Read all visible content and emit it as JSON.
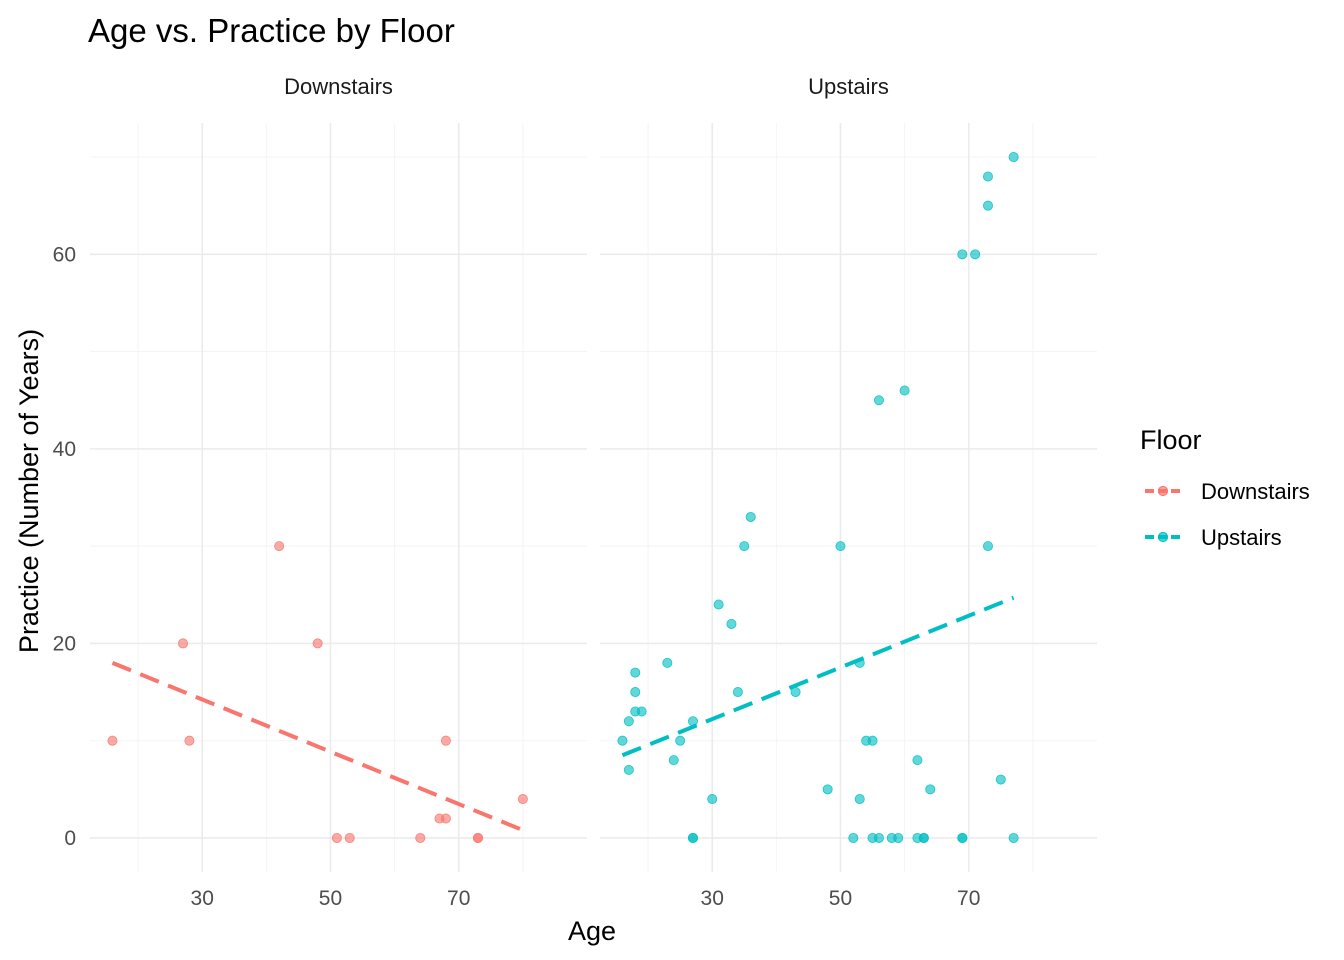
{
  "chart_data": {
    "type": "scatter",
    "title": "Age vs. Practice by Floor",
    "xlabel": "Age",
    "ylabel": "Practice (Number of Years)",
    "x_ticks": [
      30,
      50,
      70
    ],
    "y_ticks": [
      0,
      20,
      40,
      60
    ],
    "xlim": [
      12.5,
      90
    ],
    "ylim": [
      -3.5,
      73.5
    ],
    "facets": [
      "Downstairs",
      "Upstairs"
    ],
    "legend": {
      "title": "Floor",
      "position": "right",
      "entries": [
        "Downstairs",
        "Upstairs"
      ]
    },
    "grid": true,
    "series": [
      {
        "name": "Downstairs",
        "color": "#F8766D",
        "points": [
          [
            16,
            10
          ],
          [
            27,
            20
          ],
          [
            28,
            10
          ],
          [
            42,
            30
          ],
          [
            48,
            20
          ],
          [
            51,
            0
          ],
          [
            53,
            0
          ],
          [
            64,
            0
          ],
          [
            67,
            2
          ],
          [
            68,
            2
          ],
          [
            68,
            10
          ],
          [
            73,
            0
          ],
          [
            73,
            0
          ],
          [
            80,
            4
          ]
        ],
        "trend": [
          [
            16,
            18
          ],
          [
            80,
            0.8
          ]
        ]
      },
      {
        "name": "Upstairs",
        "color": "#00BFC4",
        "points": [
          [
            16,
            10
          ],
          [
            17,
            12
          ],
          [
            17,
            7
          ],
          [
            18,
            17
          ],
          [
            18,
            15
          ],
          [
            18,
            13
          ],
          [
            19,
            13
          ],
          [
            23,
            18
          ],
          [
            24,
            8
          ],
          [
            25,
            10
          ],
          [
            27,
            12
          ],
          [
            27,
            0
          ],
          [
            27,
            0
          ],
          [
            30,
            4
          ],
          [
            31,
            24
          ],
          [
            33,
            22
          ],
          [
            34,
            15
          ],
          [
            35,
            30
          ],
          [
            36,
            33
          ],
          [
            43,
            15
          ],
          [
            48,
            5
          ],
          [
            50,
            30
          ],
          [
            52,
            0
          ],
          [
            53,
            18
          ],
          [
            53,
            4
          ],
          [
            54,
            10
          ],
          [
            55,
            10
          ],
          [
            55,
            0
          ],
          [
            56,
            45
          ],
          [
            56,
            0
          ],
          [
            58,
            0
          ],
          [
            59,
            0
          ],
          [
            60,
            46
          ],
          [
            62,
            8
          ],
          [
            62,
            0
          ],
          [
            63,
            0
          ],
          [
            63,
            0
          ],
          [
            64,
            5
          ],
          [
            69,
            60
          ],
          [
            69,
            0
          ],
          [
            69,
            0
          ],
          [
            71,
            60
          ],
          [
            73,
            68
          ],
          [
            73,
            65
          ],
          [
            73,
            30
          ],
          [
            75,
            6
          ],
          [
            77,
            70
          ],
          [
            77,
            0
          ]
        ],
        "trend": [
          [
            16,
            8.5
          ],
          [
            77,
            24.7
          ]
        ]
      }
    ]
  }
}
